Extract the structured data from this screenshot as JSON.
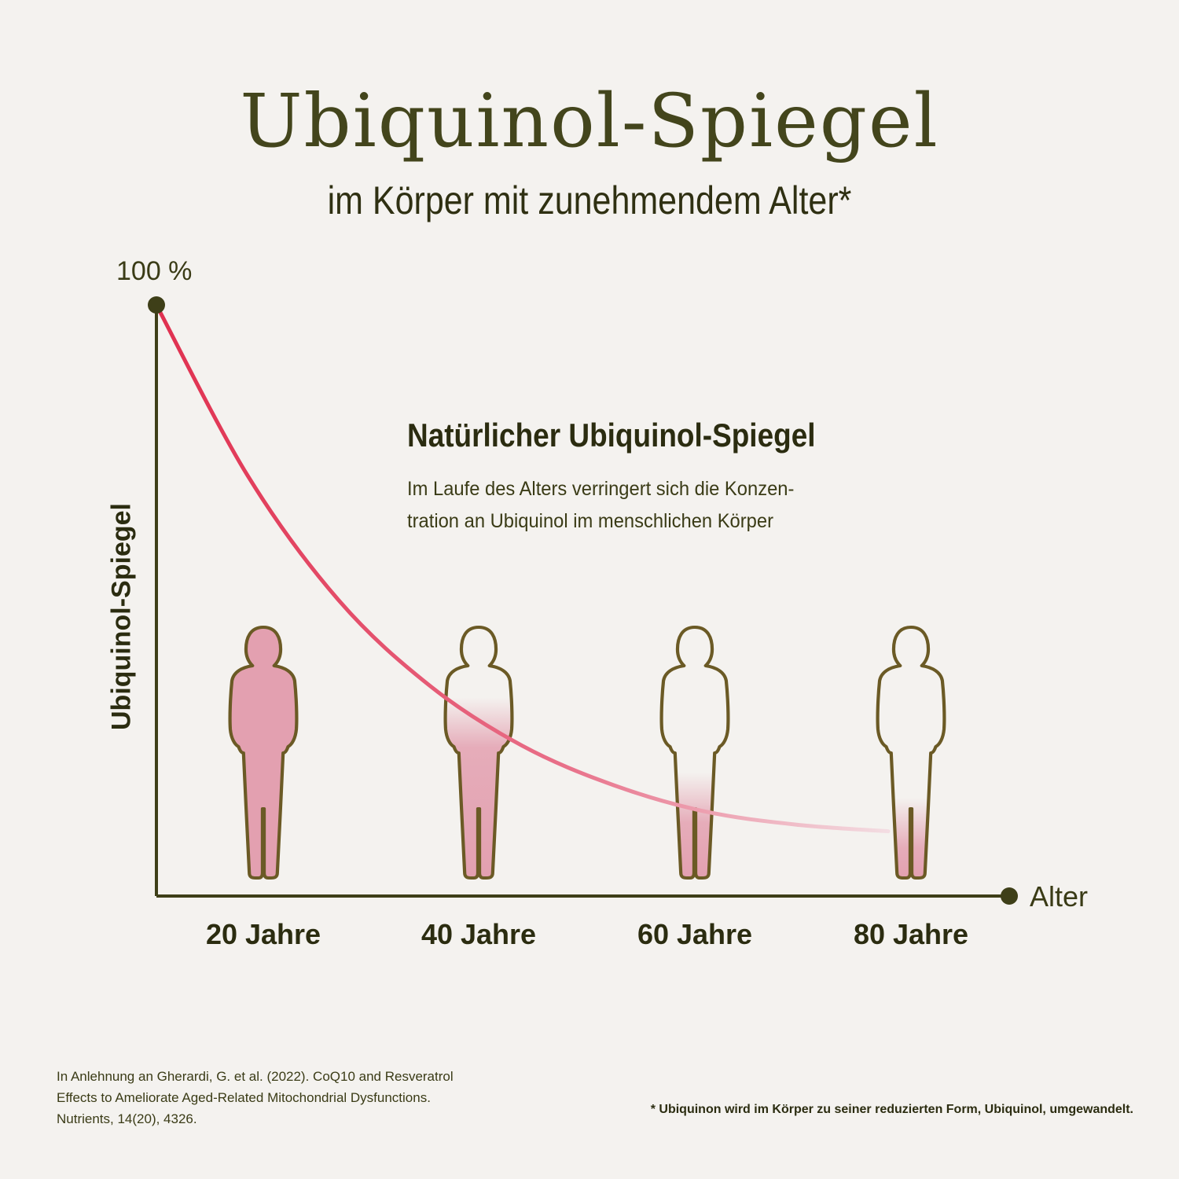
{
  "title": "Ubiquinol-Spiegel",
  "subtitle": "im Körper mit zunehmendem Alter*",
  "chart_data": {
    "type": "line",
    "title": "Ubiquinol-Spiegel",
    "ylabel": "Ubiquinol-Spiegel",
    "xlabel": "Alter",
    "y_max_label": "100 %",
    "categories": [
      "20 Jahre",
      "40 Jahre",
      "60 Jahre",
      "80 Jahre"
    ],
    "series": [
      {
        "x": [
          10,
          20,
          30,
          40,
          50,
          60,
          70,
          80,
          90
        ],
        "values": [
          100,
          74,
          55,
          42,
          33,
          27,
          23,
          21,
          20
        ]
      }
    ],
    "figure_fill_levels": [
      1.0,
      0.6,
      0.3,
      0.2
    ],
    "colors": {
      "line": "#e0304f",
      "figure_fill": "#e3a0b0",
      "axis": "#3e3f18"
    },
    "annotation": {
      "heading": "Natürlicher Ubiquinol-Spiegel",
      "lines": [
        "Im Laufe des Alters verringert sich die Konzen-",
        "tration an Ubiquinol im menschlichen Körper"
      ]
    },
    "grid": false,
    "legend": "none"
  },
  "source": [
    "In Anlehnung an Gherardi, G. et al. (2022). CoQ10 and Resveratrol",
    "Effects to Ameliorate Aged-Related Mitochondrial Dysfunctions.",
    "Nutrients, 14(20), 4326."
  ],
  "footnote": "* Ubiquinon wird im Körper zu seiner reduzierten Form, Ubiquinol, umgewandelt."
}
